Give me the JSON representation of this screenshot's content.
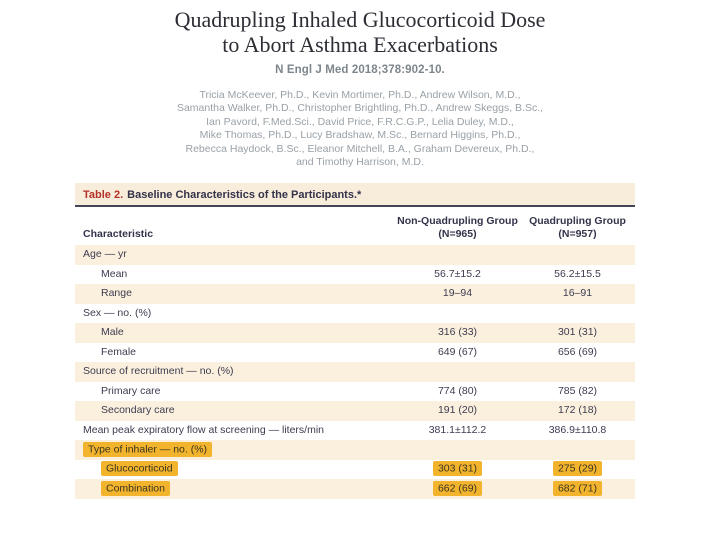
{
  "slide": {
    "title_lines": [
      "Quadrupling Inhaled Glucocorticoid Dose",
      "to Abort Asthma Exacerbations"
    ],
    "citation": "N Engl J Med 2018;378:902-10.",
    "authors": [
      "Tricia McKeever, Ph.D., Kevin Mortimer, Ph.D., Andrew Wilson, M.D.,",
      "Samantha Walker, Ph.D., Christopher Brightling, Ph.D., Andrew Skeggs, B.Sc.,",
      "Ian Pavord, F.Med.Sci., David Price, F.R.C.G.P., Lelia Duley, M.D.,",
      "Mike Thomas, Ph.D., Lucy Bradshaw, M.Sc., Bernard Higgins, Ph.D.,",
      "Rebecca Haydock, B.Sc., Eleanor Mitchell, B.A., Graham Devereux, Ph.D.,",
      "and Timothy Harrison, M.D."
    ]
  },
  "table": {
    "label": "Table 2.",
    "title": "Baseline Characteristics of the Participants.*",
    "columns": {
      "characteristic": "Characteristic",
      "group1_name": "Non-Quadrupling Group",
      "group1_n": "(N=965)",
      "group2_name": "Quadrupling Group",
      "group2_n": "(N=957)"
    },
    "rows": [
      {
        "label": "Age — yr",
        "v1": "",
        "v2": "",
        "indent": false,
        "highlight": false
      },
      {
        "label": "Mean",
        "v1": "56.7±15.2",
        "v2": "56.2±15.5",
        "indent": true,
        "highlight": false
      },
      {
        "label": "Range",
        "v1": "19–94",
        "v2": "16–91",
        "indent": true,
        "highlight": false
      },
      {
        "label": "Sex — no. (%)",
        "v1": "",
        "v2": "",
        "indent": false,
        "highlight": false
      },
      {
        "label": "Male",
        "v1": "316 (33)",
        "v2": "301 (31)",
        "indent": true,
        "highlight": false
      },
      {
        "label": "Female",
        "v1": "649 (67)",
        "v2": "656 (69)",
        "indent": true,
        "highlight": false
      },
      {
        "label": "Source of recruitment — no. (%)",
        "v1": "",
        "v2": "",
        "indent": false,
        "highlight": false
      },
      {
        "label": "Primary care",
        "v1": "774 (80)",
        "v2": "785 (82)",
        "indent": true,
        "highlight": false
      },
      {
        "label": "Secondary care",
        "v1": "191 (20)",
        "v2": "172 (18)",
        "indent": true,
        "highlight": false
      },
      {
        "label": "Mean peak expiratory flow at screening — liters/min",
        "v1": "381.1±112.2",
        "v2": "386.9±110.8",
        "indent": false,
        "highlight": false
      },
      {
        "label": "Type of inhaler — no. (%)",
        "v1": "",
        "v2": "",
        "indent": false,
        "highlight": true
      },
      {
        "label": "Glucocorticoid",
        "v1": "303 (31)",
        "v2": "275 (29)",
        "indent": true,
        "highlight": true
      },
      {
        "label": "Combination",
        "v1": "662 (69)",
        "v2": "682 (71)",
        "indent": true,
        "highlight": true
      }
    ]
  },
  "colors": {
    "cream_row": "#FBF0DE",
    "title_band": "#F8ECDA",
    "highlight": "#F2B42C",
    "table_label_red": "#B53228",
    "rule": "#45455A"
  }
}
